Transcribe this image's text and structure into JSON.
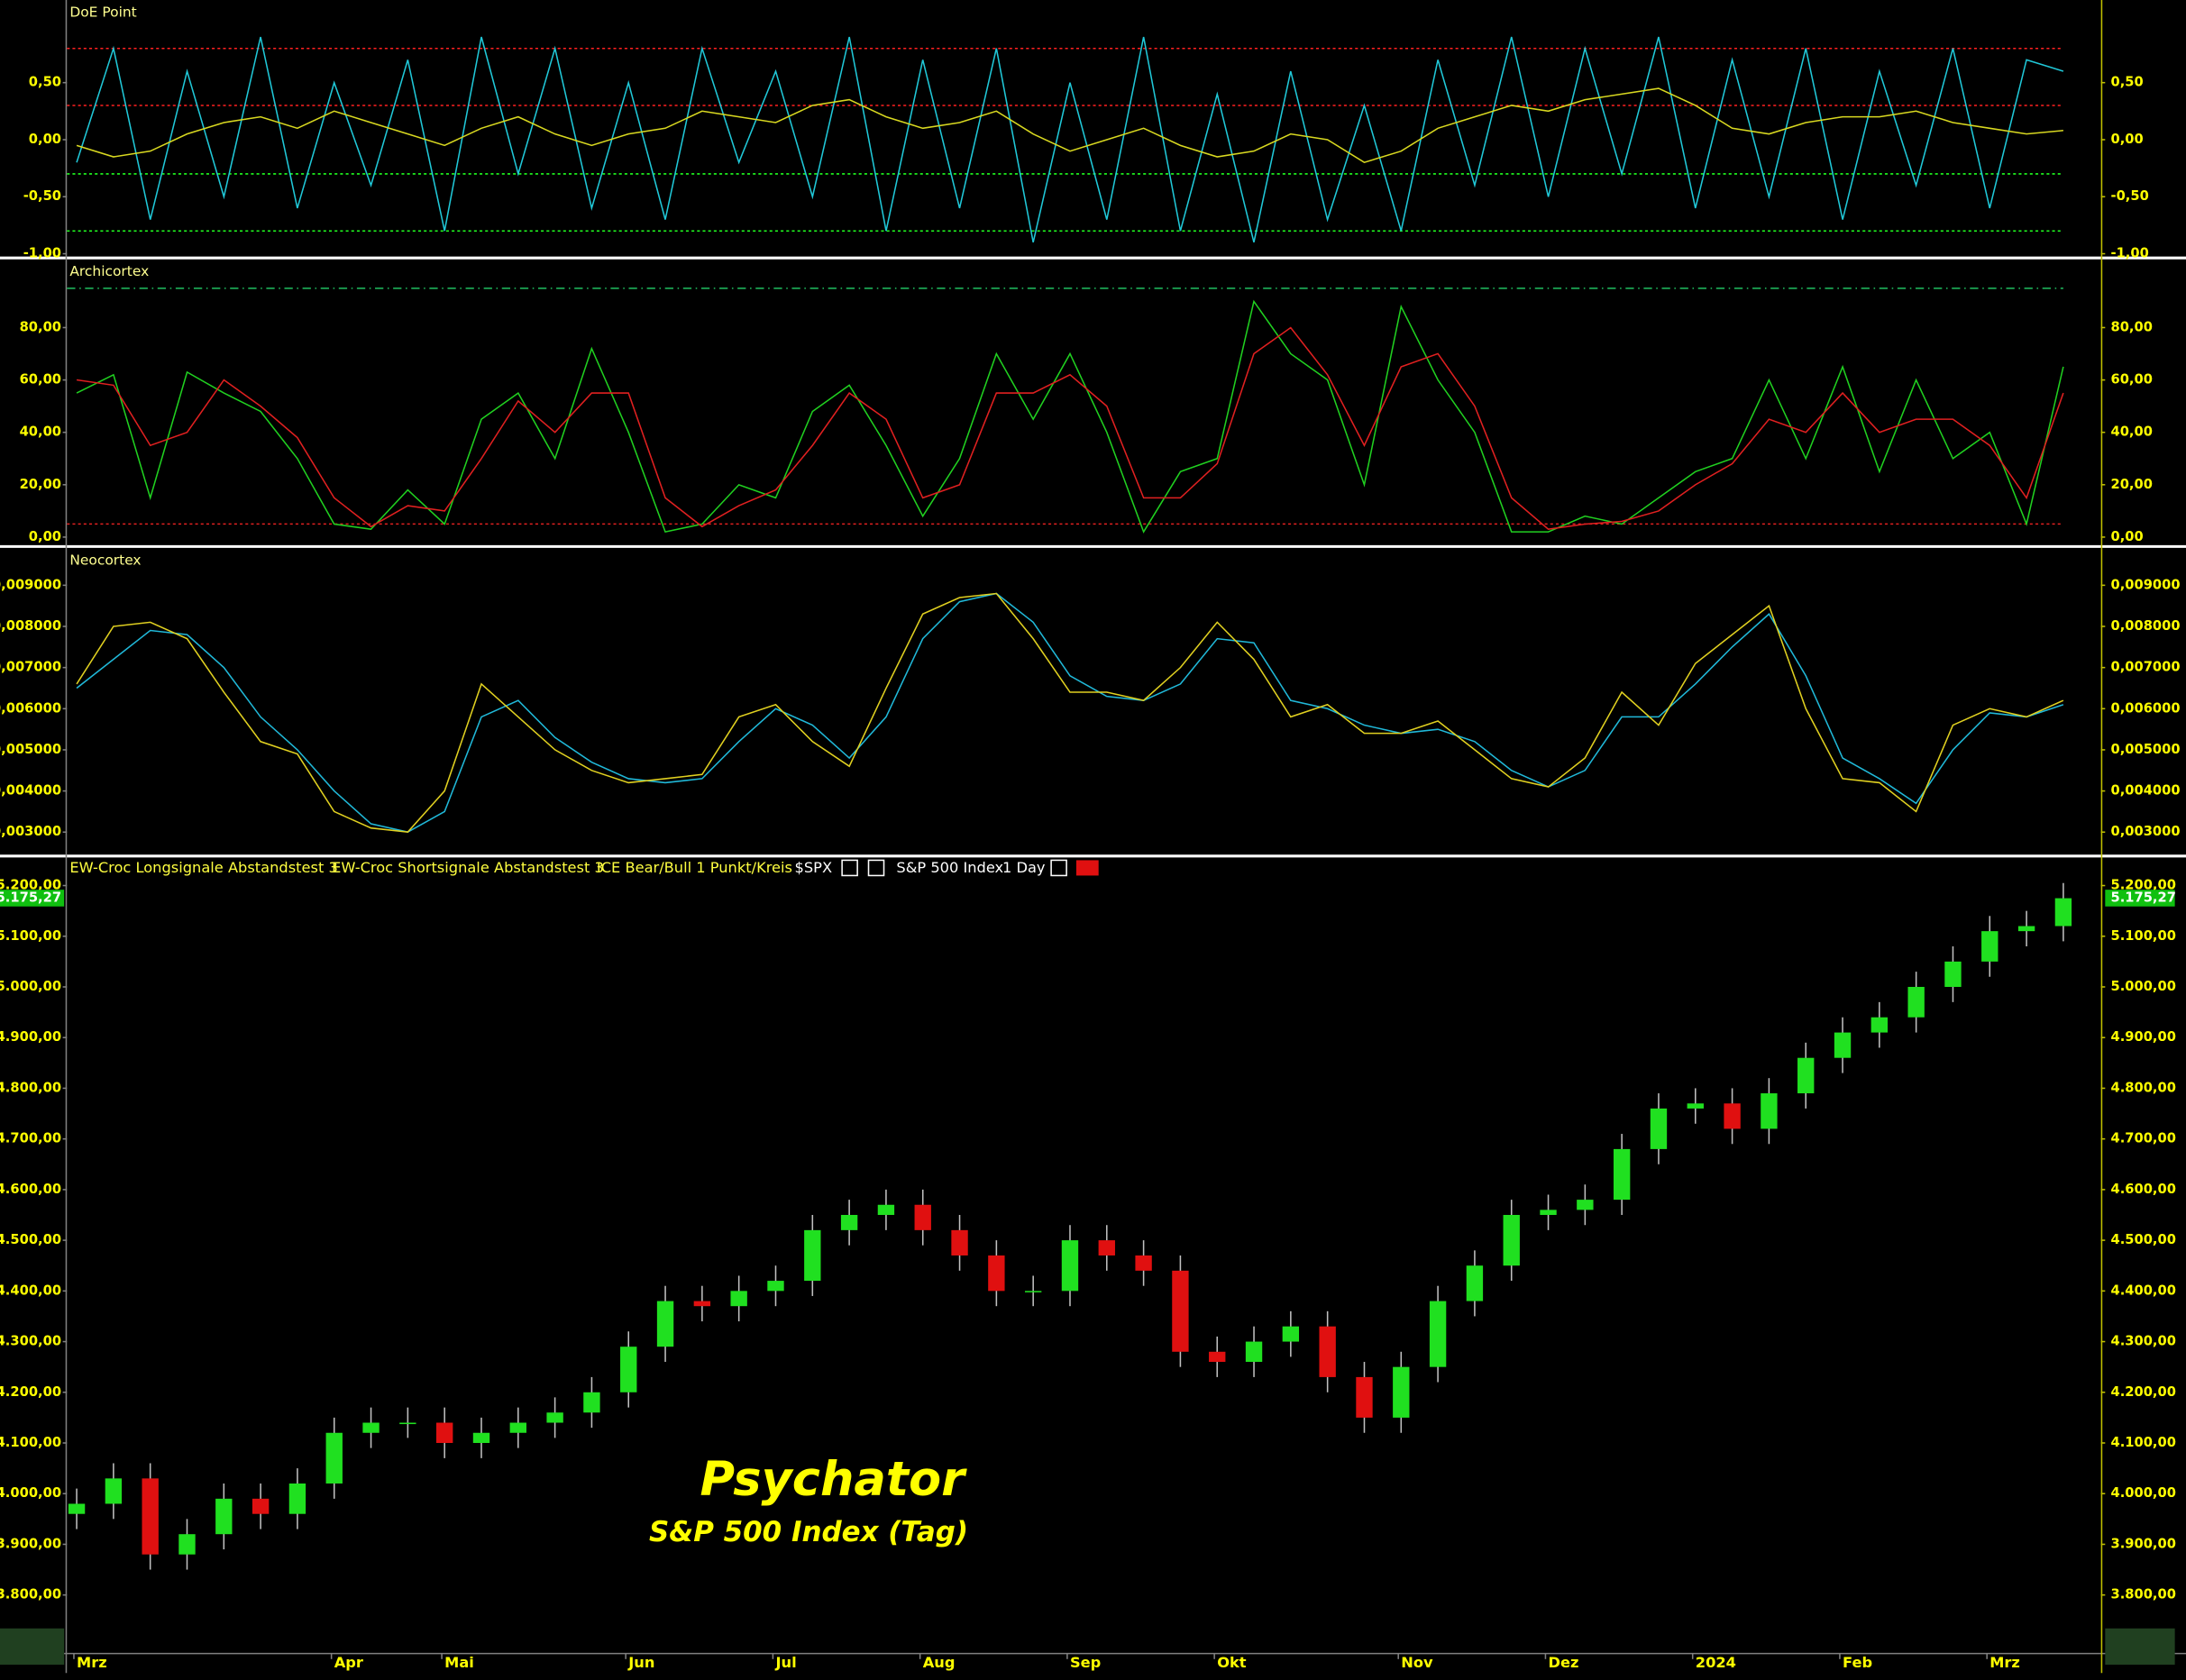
{
  "chart_data": [
    {
      "type": "line",
      "title": "DoE Point",
      "ylim": [
        -1.0,
        1.2
      ],
      "yticks": [
        {
          "value": 0.5,
          "label": "0,50"
        },
        {
          "value": 0,
          "label": "0,00"
        },
        {
          "value": -0.5,
          "label": "-0,50"
        },
        {
          "value": -1,
          "label": "-1,00"
        }
      ],
      "levels": [
        {
          "value": 0.8,
          "color": "#ff2020"
        },
        {
          "value": 0.3,
          "color": "#ff2020"
        },
        {
          "value": -0.3,
          "color": "#20ff20"
        },
        {
          "value": -0.8,
          "color": "#20ff20"
        }
      ],
      "series": [
        {
          "color": "#20c8d8",
          "values": [
            -0.2,
            0.8,
            -0.7,
            0.6,
            -0.5,
            0.9,
            -0.6,
            0.5,
            -0.4,
            0.7,
            -0.8,
            0.9,
            -0.3,
            0.8,
            -0.6,
            0.5,
            -0.7,
            0.8,
            -0.2,
            0.6,
            -0.5,
            0.9,
            -0.8,
            0.7,
            -0.6,
            0.8,
            -0.9,
            0.5,
            -0.7,
            0.9,
            -0.8,
            0.4,
            -0.9,
            0.6,
            -0.7,
            0.3,
            -0.8,
            0.7,
            -0.4,
            0.9,
            -0.5,
            0.8,
            -0.3,
            0.9,
            -0.6,
            0.7,
            -0.5,
            0.8,
            -0.7,
            0.6,
            -0.4,
            0.8,
            -0.6,
            0.7,
            0.6
          ]
        },
        {
          "color": "#d8d820",
          "values": [
            -0.05,
            -0.15,
            -0.1,
            0.05,
            0.15,
            0.2,
            0.1,
            0.25,
            0.15,
            0.05,
            -0.05,
            0.1,
            0.2,
            0.05,
            -0.05,
            0.05,
            0.1,
            0.25,
            0.2,
            0.15,
            0.3,
            0.35,
            0.2,
            0.1,
            0.15,
            0.25,
            0.05,
            -0.1,
            0.0,
            0.1,
            -0.05,
            -0.15,
            -0.1,
            0.05,
            0.0,
            -0.2,
            -0.1,
            0.1,
            0.2,
            0.3,
            0.25,
            0.35,
            0.4,
            0.45,
            0.3,
            0.1,
            0.05,
            0.15,
            0.2,
            0.2,
            0.25,
            0.15,
            0.1,
            0.05,
            0.08
          ]
        }
      ]
    },
    {
      "type": "line",
      "title": "Archicortex",
      "ylim": [
        -2,
        105
      ],
      "yticks": [
        {
          "value": 0,
          "label": "0,00"
        },
        {
          "value": 20,
          "label": "20,00"
        },
        {
          "value": 40,
          "label": "40,00"
        },
        {
          "value": 60,
          "label": "60,00"
        },
        {
          "value": 80,
          "label": "80,00"
        }
      ],
      "levels": [
        {
          "value": 95,
          "color": "#20c060"
        },
        {
          "value": 5,
          "color": "#e02020"
        }
      ],
      "series": [
        {
          "color": "#20d020",
          "values": [
            55,
            62,
            15,
            63,
            55,
            48,
            30,
            5,
            3,
            18,
            5,
            45,
            55,
            30,
            72,
            40,
            2,
            5,
            20,
            15,
            48,
            58,
            35,
            8,
            30,
            70,
            45,
            70,
            40,
            2,
            25,
            30,
            90,
            70,
            60,
            20,
            88,
            60,
            40,
            2,
            2,
            8,
            5,
            15,
            25,
            30,
            60,
            30,
            65,
            25,
            60,
            30,
            40,
            5,
            65
          ]
        },
        {
          "color": "#e02020",
          "values": [
            60,
            58,
            35,
            40,
            60,
            50,
            38,
            15,
            4,
            12,
            10,
            30,
            52,
            40,
            55,
            55,
            15,
            4,
            12,
            18,
            35,
            55,
            45,
            15,
            20,
            55,
            55,
            62,
            50,
            15,
            15,
            28,
            70,
            80,
            62,
            35,
            65,
            70,
            50,
            15,
            3,
            5,
            6,
            10,
            20,
            28,
            45,
            40,
            55,
            40,
            45,
            45,
            35,
            15,
            55
          ]
        }
      ]
    },
    {
      "type": "line",
      "title": "Neocortex",
      "ylim": [
        0.00252,
        0.00984
      ],
      "yticks": [
        {
          "value": 0.003,
          "label": "0,003000"
        },
        {
          "value": 0.004,
          "label": "0,004000"
        },
        {
          "value": 0.005,
          "label": "0,005000"
        },
        {
          "value": 0.006,
          "label": "0,006000"
        },
        {
          "value": 0.007,
          "label": "0,007000"
        },
        {
          "value": 0.008,
          "label": "0,008000"
        },
        {
          "value": 0.009,
          "label": "0,009000"
        }
      ],
      "series": [
        {
          "color": "#20b8d8",
          "values": [
            0.0065,
            0.0072,
            0.0079,
            0.0078,
            0.007,
            0.0058,
            0.005,
            0.004,
            0.0032,
            0.003,
            0.0035,
            0.0058,
            0.0062,
            0.0053,
            0.0047,
            0.0043,
            0.0042,
            0.0043,
            0.0052,
            0.006,
            0.0056,
            0.0048,
            0.0058,
            0.0077,
            0.0086,
            0.0088,
            0.0081,
            0.0068,
            0.0063,
            0.0062,
            0.0066,
            0.0077,
            0.0076,
            0.0062,
            0.006,
            0.0056,
            0.0054,
            0.0055,
            0.0052,
            0.0045,
            0.0041,
            0.0045,
            0.0058,
            0.0058,
            0.0066,
            0.0075,
            0.0083,
            0.0068,
            0.0048,
            0.0043,
            0.0037,
            0.005,
            0.0059,
            0.0058,
            0.0061
          ]
        },
        {
          "color": "#e0d020",
          "values": [
            0.0066,
            0.008,
            0.0081,
            0.0077,
            0.0064,
            0.0052,
            0.0049,
            0.0035,
            0.0031,
            0.003,
            0.004,
            0.0066,
            0.0058,
            0.005,
            0.0045,
            0.0042,
            0.0043,
            0.0044,
            0.0058,
            0.0061,
            0.0052,
            0.0046,
            0.0065,
            0.0083,
            0.0087,
            0.0088,
            0.0077,
            0.0064,
            0.0064,
            0.0062,
            0.007,
            0.0081,
            0.0072,
            0.0058,
            0.0061,
            0.0054,
            0.0054,
            0.0057,
            0.005,
            0.0043,
            0.0041,
            0.0048,
            0.0064,
            0.0056,
            0.0071,
            0.0078,
            0.0085,
            0.006,
            0.0043,
            0.0042,
            0.0035,
            0.0056,
            0.006,
            0.0058,
            0.0062
          ]
        }
      ]
    },
    {
      "type": "candlestick",
      "legend": [
        "EW-Croc Longsignale Abstandstest 3",
        "EW-Croc Shortsignale Abstandstest 3",
        "ICE Bear/Bull 1 Punkt/Kreis",
        "$SPX",
        "S&P 500 Index",
        "1 Day"
      ],
      "annotations": [
        "Psychator",
        "S&P 500 Index (Tag)"
      ],
      "last_price": {
        "value": 5175.27,
        "label": "5.175,27"
      },
      "up_color": "#20e020",
      "down_color": "#e01010",
      "ylim": [
        3690,
        5250
      ],
      "yticks": [
        {
          "value": 3800,
          "label": "3.800,00"
        },
        {
          "value": 3900,
          "label": "3.900,00"
        },
        {
          "value": 4000,
          "label": "4.000,00"
        },
        {
          "value": 4100,
          "label": "4.100,00"
        },
        {
          "value": 4200,
          "label": "4.200,00"
        },
        {
          "value": 4300,
          "label": "4.300,00"
        },
        {
          "value": 4400,
          "label": "4.400,00"
        },
        {
          "value": 4500,
          "label": "4.500,00"
        },
        {
          "value": 4600,
          "label": "4.600,00"
        },
        {
          "value": 4700,
          "label": "4.700,00"
        },
        {
          "value": 4800,
          "label": "4.800,00"
        },
        {
          "value": 4900,
          "label": "4.900,00"
        },
        {
          "value": 5000,
          "label": "5.000,00"
        },
        {
          "value": 5100,
          "label": "5.100,00"
        },
        {
          "value": 5200,
          "label": "5.200,00"
        }
      ],
      "categories": [
        "Mrz",
        null,
        null,
        null,
        null,
        null,
        null,
        "Apr",
        null,
        null,
        "Mai",
        null,
        null,
        null,
        null,
        "Jun",
        null,
        null,
        null,
        "Jul",
        null,
        null,
        null,
        "Aug",
        null,
        null,
        null,
        "Sep",
        null,
        null,
        null,
        "Okt",
        null,
        null,
        null,
        null,
        "Nov",
        null,
        null,
        null,
        "Dez",
        null,
        null,
        null,
        "2024",
        null,
        null,
        null,
        "Feb",
        null,
        null,
        null,
        "Mrz",
        null,
        null
      ],
      "open": [
        3960,
        3980,
        4030,
        3880,
        3920,
        3990,
        3960,
        4020,
        4120,
        4140,
        4140,
        4100,
        4120,
        4140,
        4160,
        4200,
        4290,
        4380,
        4370,
        4400,
        4420,
        4520,
        4550,
        4570,
        4520,
        4470,
        4400,
        4400,
        4500,
        4470,
        4440,
        4280,
        4260,
        4300,
        4330,
        4230,
        4150,
        4250,
        4380,
        4450,
        4550,
        4560,
        4580,
        4680,
        4760,
        4770,
        4720,
        4790,
        4860,
        4910,
        4940,
        5000,
        5050,
        5110,
        5120
      ],
      "high": [
        4010,
        4060,
        4060,
        3950,
        4020,
        4020,
        4050,
        4150,
        4170,
        4170,
        4170,
        4150,
        4170,
        4190,
        4230,
        4320,
        4410,
        4410,
        4430,
        4450,
        4550,
        4580,
        4600,
        4600,
        4550,
        4500,
        4430,
        4530,
        4530,
        4500,
        4470,
        4310,
        4330,
        4360,
        4360,
        4260,
        4280,
        4410,
        4480,
        4580,
        4590,
        4610,
        4710,
        4790,
        4800,
        4800,
        4820,
        4890,
        4940,
        4970,
        5030,
        5080,
        5140,
        5150,
        5205
      ],
      "low": [
        3930,
        3950,
        3850,
        3850,
        3890,
        3930,
        3930,
        3990,
        4090,
        4110,
        4070,
        4070,
        4090,
        4110,
        4130,
        4170,
        4260,
        4340,
        4340,
        4370,
        4390,
        4490,
        4520,
        4490,
        4440,
        4370,
        4370,
        4370,
        4440,
        4410,
        4250,
        4230,
        4230,
        4270,
        4200,
        4120,
        4120,
        4220,
        4350,
        4420,
        4520,
        4530,
        4550,
        4650,
        4730,
        4690,
        4690,
        4760,
        4830,
        4880,
        4910,
        4970,
        5020,
        5080,
        5090
      ],
      "close": [
        3980,
        4030,
        3880,
        3920,
        3990,
        3960,
        4020,
        4120,
        4140,
        4140,
        4100,
        4120,
        4140,
        4160,
        4200,
        4290,
        4380,
        4370,
        4400,
        4420,
        4520,
        4550,
        4570,
        4520,
        4470,
        4400,
        4400,
        4500,
        4470,
        4440,
        4280,
        4260,
        4300,
        4330,
        4230,
        4150,
        4250,
        4380,
        4450,
        4550,
        4560,
        4580,
        4680,
        4760,
        4770,
        4720,
        4790,
        4860,
        4910,
        4940,
        5000,
        5050,
        5110,
        5120,
        5175
      ]
    }
  ]
}
